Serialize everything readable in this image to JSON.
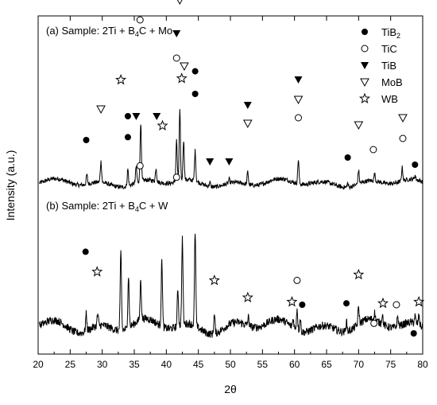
{
  "chart_data": {
    "type": "line",
    "xlabel": "2θ",
    "ylabel": "Intensity (a.u.)",
    "xlim": [
      20,
      80
    ],
    "x_ticks": [
      "20",
      "25",
      "30",
      "35",
      "40",
      "45",
      "50",
      "55",
      "60",
      "65",
      "70",
      "75",
      "80"
    ],
    "legend": {
      "placement": "top-right",
      "entries": [
        {
          "symbol": "filled-circle",
          "label": "TiB",
          "sub": "2"
        },
        {
          "symbol": "open-circle",
          "label": "TiC",
          "sub": ""
        },
        {
          "symbol": "filled-triangle-down",
          "label": "TiB",
          "sub": ""
        },
        {
          "symbol": "open-triangle-down",
          "label": "MoB",
          "sub": ""
        },
        {
          "symbol": "open-star",
          "label": "WB",
          "sub": ""
        }
      ]
    },
    "series": [
      {
        "name": "(a) Sample: 2Ti + B4C + Mo",
        "label_parts": [
          "(a) Sample: 2Ti + B",
          "4",
          "C + Mo"
        ],
        "peaks": [
          {
            "x": 27.6,
            "h": 0.12
          },
          {
            "x": 29.8,
            "h": 0.26
          },
          {
            "x": 34.0,
            "h": 0.21
          },
          {
            "x": 35.3,
            "h": 0.2
          },
          {
            "x": 36.0,
            "h": 0.73
          },
          {
            "x": 38.4,
            "h": 0.17
          },
          {
            "x": 41.6,
            "h": 0.52
          },
          {
            "x": 42.1,
            "h": 0.88
          },
          {
            "x": 42.7,
            "h": 0.5
          },
          {
            "x": 44.5,
            "h": 0.38
          },
          {
            "x": 46.8,
            "h": 0.05
          },
          {
            "x": 49.8,
            "h": 0.05
          },
          {
            "x": 52.7,
            "h": 0.16
          },
          {
            "x": 60.6,
            "h": 0.3
          },
          {
            "x": 68.3,
            "h": 0.05
          },
          {
            "x": 70.0,
            "h": 0.17
          },
          {
            "x": 72.5,
            "h": 0.09
          },
          {
            "x": 76.8,
            "h": 0.17
          },
          {
            "x": 78.8,
            "h": 0.05
          }
        ],
        "markers": [
          {
            "x": 27.5,
            "y": 0.54,
            "s": "filled-circle"
          },
          {
            "x": 29.8,
            "y": 0.93,
            "s": "open-triangle-down"
          },
          {
            "x": 34.0,
            "y": 0.84,
            "s": "filled-circle"
          },
          {
            "x": 35.3,
            "y": 0.84,
            "s": "filled-triangle-down"
          },
          {
            "x": 35.9,
            "y": 2.05,
            "s": "open-circle"
          },
          {
            "x": 35.9,
            "y": 2.38,
            "s": "open-triangle-down"
          },
          {
            "x": 38.5,
            "y": 0.84,
            "s": "filled-triangle-down"
          },
          {
            "x": 41.6,
            "y": 1.57,
            "s": "open-circle"
          },
          {
            "x": 41.6,
            "y": 1.88,
            "s": "filled-triangle-down"
          },
          {
            "x": 42.1,
            "y": 2.3,
            "s": "open-triangle-down"
          },
          {
            "x": 42.1,
            "y": 2.62,
            "s": "filled-triangle-down"
          },
          {
            "x": 42.8,
            "y": 1.47,
            "s": "open-triangle-down"
          },
          {
            "x": 44.5,
            "y": 1.12,
            "s": "filled-circle"
          },
          {
            "x": 46.8,
            "y": 0.27,
            "s": "filled-triangle-down"
          },
          {
            "x": 49.8,
            "y": 0.27,
            "s": "filled-triangle-down"
          },
          {
            "x": 52.7,
            "y": 0.75,
            "s": "open-triangle-down"
          },
          {
            "x": 52.7,
            "y": 0.98,
            "s": "filled-triangle-down"
          },
          {
            "x": 60.6,
            "y": 0.82,
            "s": "open-circle"
          },
          {
            "x": 60.6,
            "y": 1.05,
            "s": "open-triangle-down"
          },
          {
            "x": 60.6,
            "y": 1.3,
            "s": "filled-triangle-down"
          },
          {
            "x": 68.3,
            "y": 0.32,
            "s": "filled-circle"
          },
          {
            "x": 70.0,
            "y": 0.73,
            "s": "open-triangle-down"
          },
          {
            "x": 72.3,
            "y": 0.42,
            "s": "open-circle"
          },
          {
            "x": 76.9,
            "y": 0.56,
            "s": "open-circle"
          },
          {
            "x": 76.9,
            "y": 0.82,
            "s": "open-triangle-down"
          },
          {
            "x": 78.8,
            "y": 0.23,
            "s": "filled-circle"
          }
        ]
      },
      {
        "name": "(b) Sample: 2Ti + B4C + W",
        "label_parts": [
          "(b) Sample: 2Ti + B",
          "4",
          "C + W"
        ],
        "peaks": [
          {
            "x": 27.5,
            "h": 0.12
          },
          {
            "x": 29.3,
            "h": 0.08
          },
          {
            "x": 32.9,
            "h": 0.55
          },
          {
            "x": 34.1,
            "h": 0.36
          },
          {
            "x": 36.0,
            "h": 0.28
          },
          {
            "x": 39.3,
            "h": 0.46
          },
          {
            "x": 41.8,
            "h": 0.25
          },
          {
            "x": 42.5,
            "h": 0.6
          },
          {
            "x": 44.5,
            "h": 0.66
          },
          {
            "x": 47.5,
            "h": 0.13
          },
          {
            "x": 52.8,
            "h": 0.06
          },
          {
            "x": 59.8,
            "h": 0.06
          },
          {
            "x": 60.4,
            "h": 0.15
          },
          {
            "x": 60.9,
            "h": 0.09
          },
          {
            "x": 68.1,
            "h": 0.07
          },
          {
            "x": 70.0,
            "h": 0.12
          },
          {
            "x": 72.5,
            "h": 0.05
          },
          {
            "x": 73.7,
            "h": 0.07
          },
          {
            "x": 76.1,
            "h": 0.07
          },
          {
            "x": 78.8,
            "h": 0.05
          },
          {
            "x": 79.4,
            "h": 0.06
          }
        ],
        "markers": [
          {
            "x": 27.4,
            "y": 0.52,
            "s": "filled-circle"
          },
          {
            "x": 29.2,
            "y": 0.38,
            "s": "open-star"
          },
          {
            "x": 32.9,
            "y": 1.72,
            "s": "open-star"
          },
          {
            "x": 34.0,
            "y": 1.32,
            "s": "filled-circle"
          },
          {
            "x": 35.9,
            "y": 1.12,
            "s": "open-circle"
          },
          {
            "x": 39.4,
            "y": 1.4,
            "s": "open-star"
          },
          {
            "x": 41.6,
            "y": 1.04,
            "s": "open-circle"
          },
          {
            "x": 42.4,
            "y": 1.73,
            "s": "open-star"
          },
          {
            "x": 44.5,
            "y": 1.78,
            "s": "filled-circle"
          },
          {
            "x": 47.5,
            "y": 0.32,
            "s": "open-star"
          },
          {
            "x": 52.7,
            "y": 0.2,
            "s": "open-star"
          },
          {
            "x": 59.6,
            "y": 0.17,
            "s": "open-star"
          },
          {
            "x": 60.4,
            "y": 0.32,
            "s": "open-circle"
          },
          {
            "x": 61.2,
            "y": 0.15,
            "s": "filled-circle"
          },
          {
            "x": 68.1,
            "y": 0.16,
            "s": "filled-circle"
          },
          {
            "x": 70.0,
            "y": 0.36,
            "s": "open-star"
          },
          {
            "x": 72.4,
            "y": 0.02,
            "s": "open-circle"
          },
          {
            "x": 73.8,
            "y": 0.16,
            "s": "open-star"
          },
          {
            "x": 75.9,
            "y": 0.15,
            "s": "open-circle"
          },
          {
            "x": 78.6,
            "y": -0.05,
            "s": "filled-circle"
          },
          {
            "x": 79.4,
            "y": 0.17,
            "s": "open-star"
          }
        ]
      }
    ]
  }
}
